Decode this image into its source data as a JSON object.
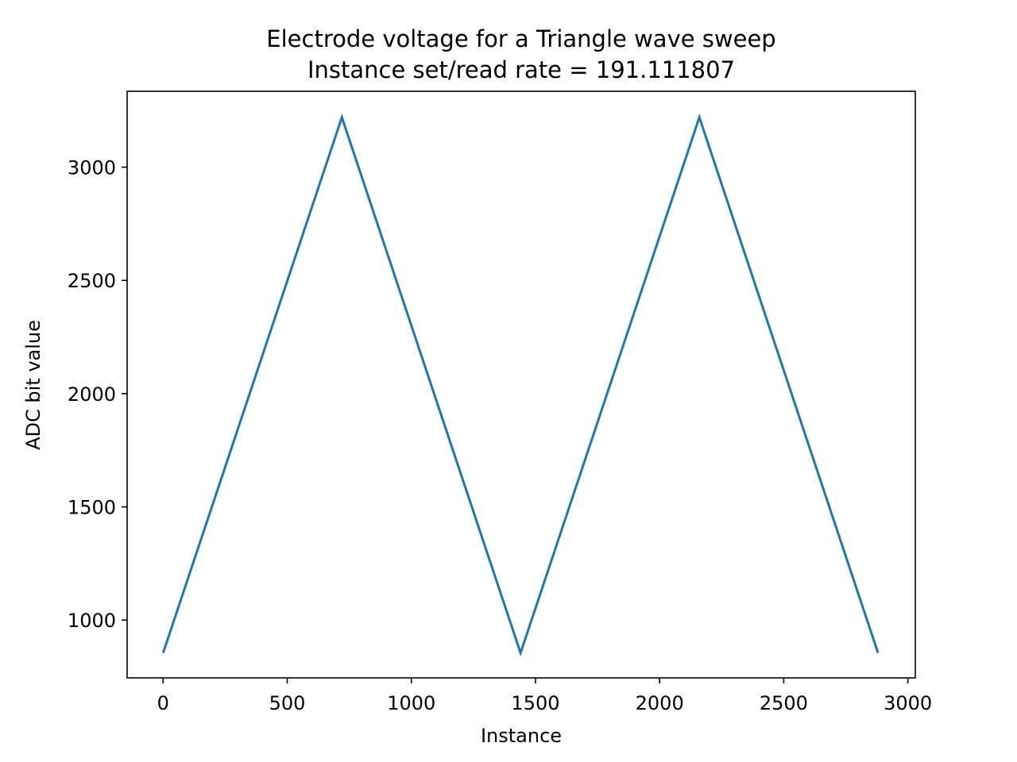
{
  "chart_data": {
    "type": "line",
    "title": "Electrode voltage for a Triangle wave sweep",
    "subtitle": "Instance set/read rate = 191.111807",
    "xlabel": "Instance",
    "ylabel": "ADC bit value",
    "xlim": [
      -145,
      3030
    ],
    "ylim": [
      745,
      3335
    ],
    "xticks": [
      0,
      500,
      1000,
      1500,
      2000,
      2500,
      3000
    ],
    "xtick_labels": [
      "0",
      "500",
      "1000",
      "1500",
      "2000",
      "2500",
      "3000"
    ],
    "yticks": [
      1000,
      1500,
      2000,
      2500,
      3000
    ],
    "ytick_labels": [
      "1000",
      "1500",
      "2000",
      "2500",
      "3000"
    ],
    "grid": false,
    "series": [
      {
        "color": "#1f77b4",
        "x": [
          0,
          720,
          1440,
          2160,
          2880
        ],
        "y": [
          855,
          3220,
          855,
          3220,
          855
        ]
      }
    ]
  }
}
